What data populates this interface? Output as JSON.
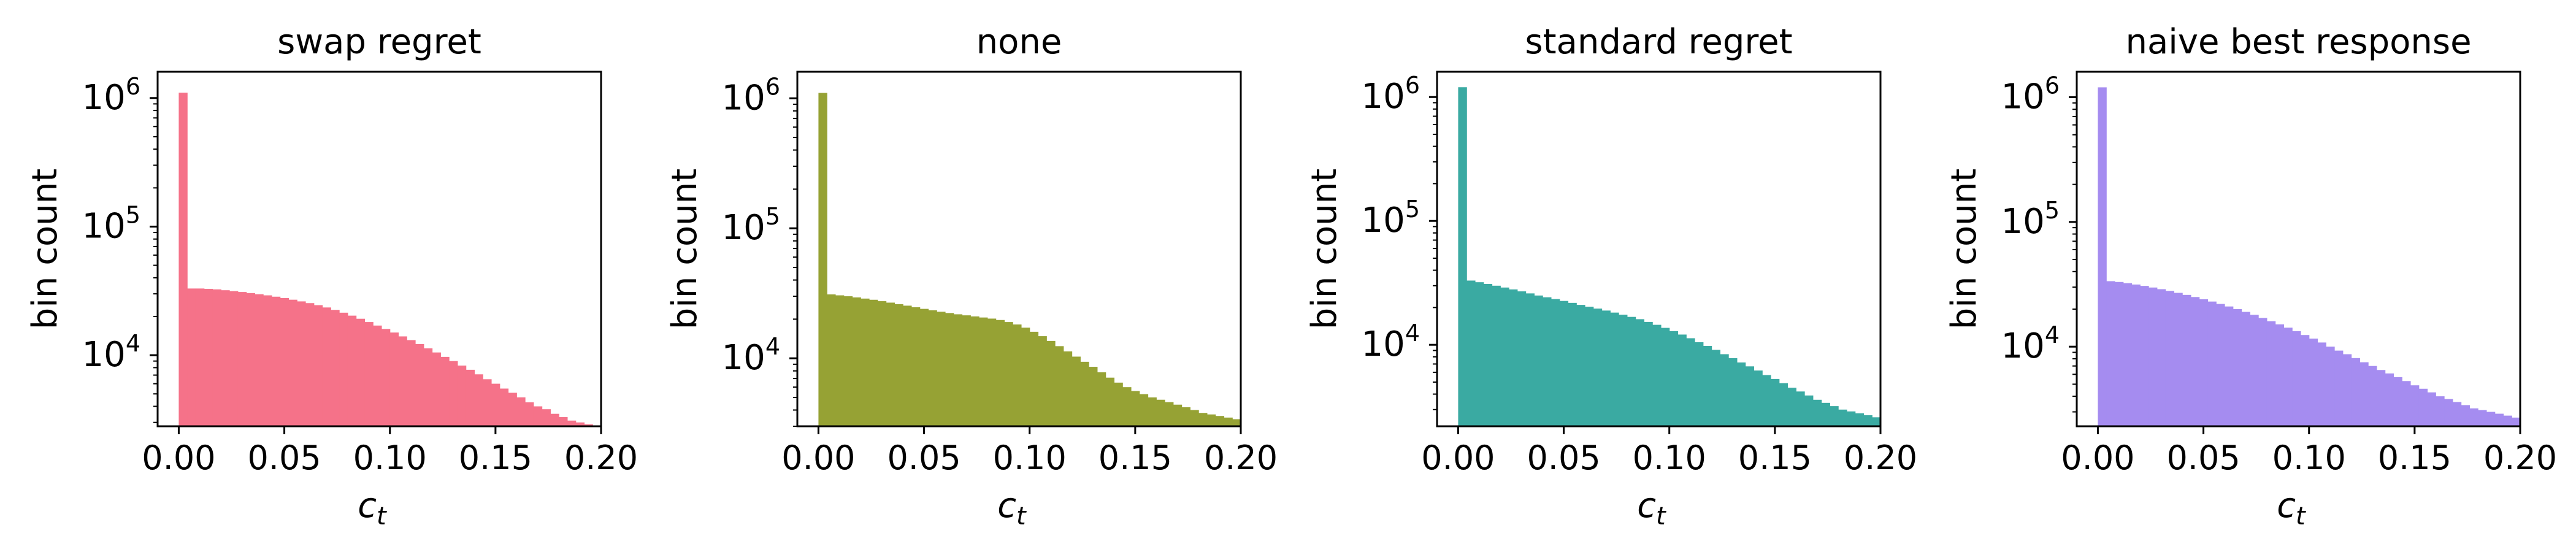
{
  "chart_data": [
    {
      "type": "bar",
      "title": "swap regret",
      "xlabel": "c",
      "xlabel_sub": "t",
      "ylabel": "bin count",
      "color": "#f57289",
      "xlim": [
        -0.01,
        0.2
      ],
      "ylim": [
        2800,
        1600000
      ],
      "yscale": "log",
      "xticks": [
        "0.00",
        "0.05",
        "0.10",
        "0.15",
        "0.20"
      ],
      "yticks": [
        {
          "base": "10",
          "exp": "4",
          "value": 10000
        },
        {
          "base": "10",
          "exp": "5",
          "value": 100000
        },
        {
          "base": "10",
          "exp": "6",
          "value": 1000000
        }
      ],
      "bin_width": 0.004,
      "bin_start": 0.0,
      "values": [
        1100000,
        33000,
        33000,
        32800,
        32500,
        32000,
        31500,
        31000,
        30400,
        29800,
        29200,
        28500,
        27800,
        27000,
        26200,
        25400,
        24500,
        23500,
        22500,
        21400,
        20300,
        19200,
        18100,
        17000,
        16000,
        15000,
        14000,
        13100,
        12200,
        11300,
        10500,
        9700,
        9000,
        8300,
        7700,
        7100,
        6500,
        6000,
        5500,
        5100,
        4700,
        4300,
        4000,
        3800,
        3500,
        3300,
        3100,
        3000,
        2900,
        2800
      ]
    },
    {
      "type": "bar",
      "title": "none",
      "xlabel": "c",
      "xlabel_sub": "t",
      "ylabel": "bin count",
      "color": "#96a234",
      "xlim": [
        -0.01,
        0.2
      ],
      "ylim": [
        3000,
        1600000
      ],
      "yscale": "log",
      "xticks": [
        "0.00",
        "0.05",
        "0.10",
        "0.15",
        "0.20"
      ],
      "yticks": [
        {
          "base": "10",
          "exp": "4",
          "value": 10000
        },
        {
          "base": "10",
          "exp": "5",
          "value": 100000
        },
        {
          "base": "10",
          "exp": "6",
          "value": 1000000
        }
      ],
      "bin_width": 0.004,
      "bin_start": 0.0,
      "values": [
        1100000,
        31000,
        30500,
        30000,
        29400,
        28800,
        28200,
        27500,
        26800,
        26100,
        25400,
        24700,
        24000,
        23400,
        22800,
        22300,
        21800,
        21400,
        21000,
        20600,
        20200,
        19700,
        19000,
        18200,
        17200,
        16000,
        14800,
        13600,
        12400,
        11300,
        10300,
        9400,
        8600,
        7800,
        7100,
        6500,
        6000,
        5600,
        5300,
        5000,
        4800,
        4600,
        4400,
        4200,
        4000,
        3800,
        3700,
        3600,
        3500,
        3400
      ]
    },
    {
      "type": "bar",
      "title": "standard regret",
      "xlabel": "c",
      "xlabel_sub": "t",
      "ylabel": "bin count",
      "color": "#3aaaa2",
      "xlim": [
        -0.01,
        0.2
      ],
      "ylim": [
        2200,
        1600000
      ],
      "yscale": "log",
      "xticks": [
        "0.00",
        "0.05",
        "0.10",
        "0.15",
        "0.20"
      ],
      "yticks": [
        {
          "base": "10",
          "exp": "4",
          "value": 10000
        },
        {
          "base": "10",
          "exp": "5",
          "value": 100000
        },
        {
          "base": "10",
          "exp": "6",
          "value": 1000000
        }
      ],
      "bin_width": 0.004,
      "bin_start": 0.0,
      "values": [
        1200000,
        33000,
        32000,
        31000,
        30000,
        29000,
        28000,
        27000,
        26000,
        25000,
        24200,
        23400,
        22600,
        21800,
        21000,
        20300,
        19600,
        18900,
        18200,
        17500,
        16800,
        16100,
        15300,
        14500,
        13700,
        12900,
        12100,
        11300,
        10500,
        9800,
        9100,
        8400,
        7800,
        7200,
        6700,
        6200,
        5700,
        5300,
        4900,
        4500,
        4200,
        3900,
        3600,
        3400,
        3200,
        3000,
        2900,
        2800,
        2700,
        2600
      ]
    },
    {
      "type": "bar",
      "title": "naive best response",
      "xlabel": "c",
      "xlabel_sub": "t",
      "ylabel": "bin count",
      "color": "#a58cf0",
      "xlim": [
        -0.01,
        0.2
      ],
      "ylim": [
        2300,
        1600000
      ],
      "yscale": "log",
      "xticks": [
        "0.00",
        "0.05",
        "0.10",
        "0.15",
        "0.20"
      ],
      "yticks": [
        {
          "base": "10",
          "exp": "4",
          "value": 10000
        },
        {
          "base": "10",
          "exp": "5",
          "value": 100000
        },
        {
          "base": "10",
          "exp": "6",
          "value": 1000000
        }
      ],
      "bin_width": 0.004,
      "bin_start": 0.0,
      "values": [
        1200000,
        33500,
        33000,
        32300,
        31500,
        30700,
        29800,
        28900,
        28000,
        27000,
        26000,
        25000,
        24000,
        23000,
        22000,
        21000,
        20000,
        19000,
        18000,
        17000,
        16000,
        15100,
        14200,
        13300,
        12400,
        11600,
        10800,
        10000,
        9300,
        8700,
        8100,
        7500,
        7000,
        6500,
        6100,
        5700,
        5300,
        4900,
        4600,
        4300,
        4000,
        3800,
        3600,
        3400,
        3200,
        3100,
        3000,
        2900,
        2800,
        2700
      ]
    }
  ]
}
